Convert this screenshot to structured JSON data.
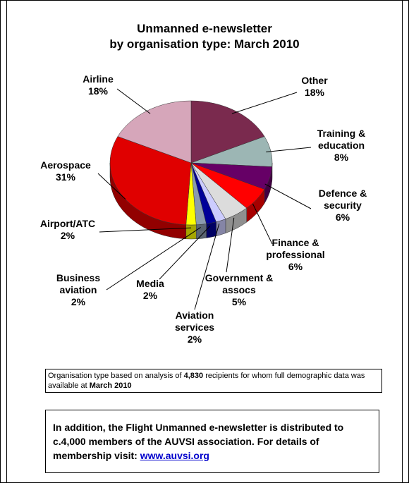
{
  "chart_data": {
    "type": "pie3d",
    "title": "Unmanned e-newsletter",
    "subtitle": "by organisation type: March 2010",
    "categories": [
      "Other",
      "Training & education",
      "Defence & security",
      "Finance & professional",
      "Government & assocs",
      "Aviation services",
      "Media",
      "Business aviation",
      "Airport/ATC",
      "Aerospace",
      "Airline"
    ],
    "values": [
      18,
      8,
      6,
      6,
      5,
      2,
      2,
      2,
      2,
      31,
      18
    ],
    "value_labels": [
      "18%",
      "8%",
      "6%",
      "6%",
      "5%",
      "2%",
      "2%",
      "2%",
      "2%",
      "31%",
      "18%"
    ],
    "colors": [
      "#7a2a4e",
      "#9cb6b4",
      "#660066",
      "#ff0000",
      "#dcdcdc",
      "#ccccff",
      "#000099",
      "#8a9aae",
      "#ffff00",
      "#e00000",
      "#d6a6ba"
    ]
  },
  "note": [
    "Organisation type based on analysis of ",
    "4,830",
    " recipients for whom full demographic data was available at ",
    "March 2010"
  ],
  "info": {
    "text": "In addition, the Flight Unmanned e-newsletter is distributed to c.4,000 members of the AUVSI association. For details of membership visit: ",
    "link": "www.auvsi.org"
  }
}
